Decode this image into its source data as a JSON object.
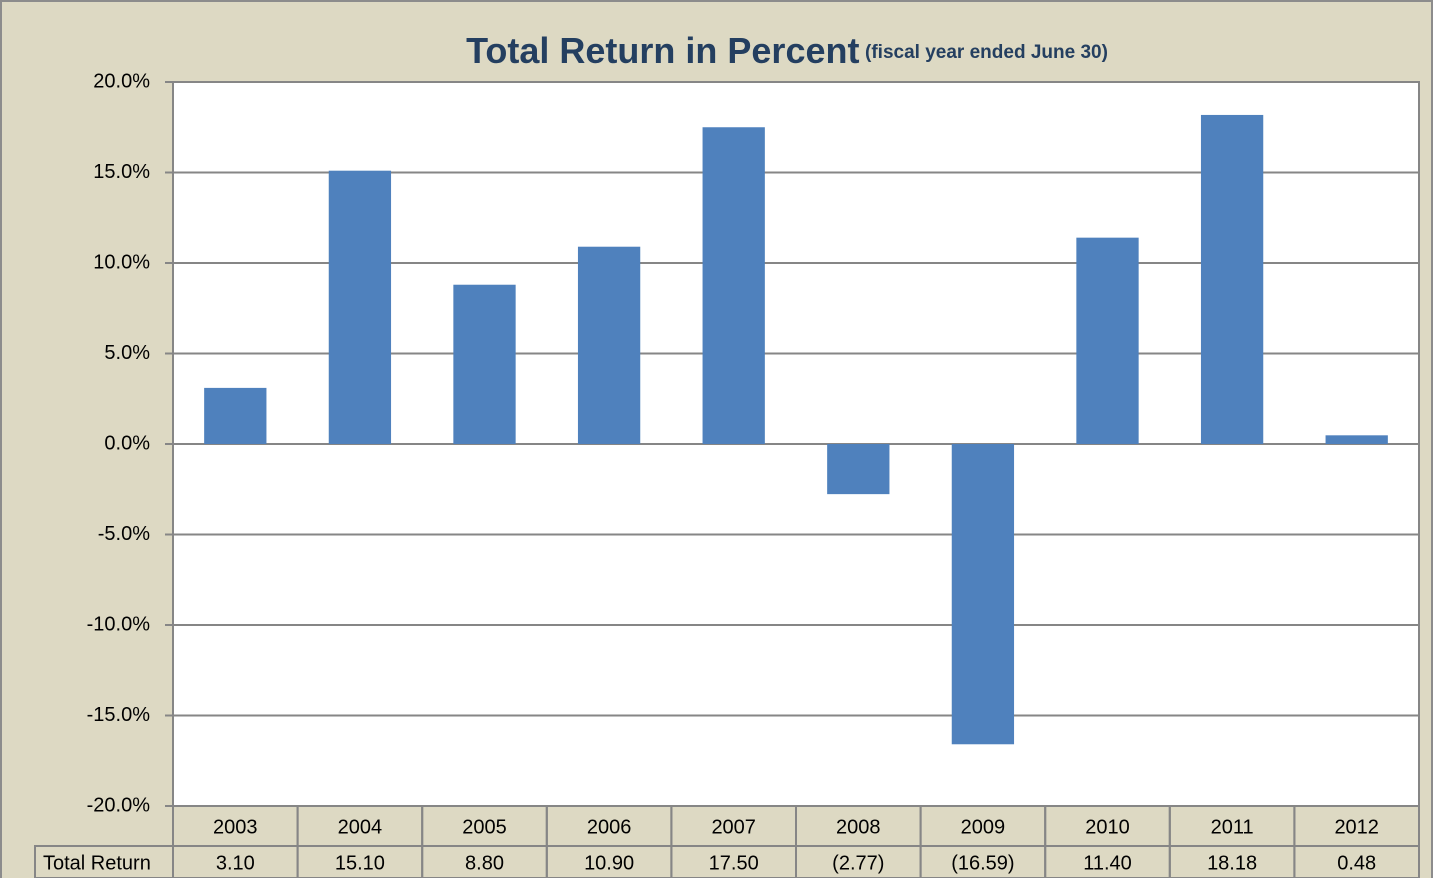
{
  "chart_data": {
    "type": "bar",
    "title": "Total Return in Percent",
    "subtitle": "(fiscal year ended June 30)",
    "categories": [
      "2003",
      "2004",
      "2005",
      "2006",
      "2007",
      "2008",
      "2009",
      "2010",
      "2011",
      "2012"
    ],
    "series": [
      {
        "name": "Total Return",
        "color": "#4f81bd",
        "values": [
          3.1,
          15.1,
          8.8,
          10.9,
          17.5,
          -2.77,
          -16.59,
          11.4,
          18.18,
          0.48
        ],
        "value_labels": [
          "3.10",
          "15.10",
          "8.80",
          "10.90",
          "17.50",
          "(2.77)",
          "(16.59)",
          "11.40",
          "18.18",
          "0.48"
        ]
      }
    ],
    "ylim": [
      -20,
      20
    ],
    "yticks": [
      {
        "value": -20,
        "label": "-20.0%"
      },
      {
        "value": -15,
        "label": "-15.0%"
      },
      {
        "value": -10,
        "label": "-10.0%"
      },
      {
        "value": -5,
        "label": "-5.0%"
      },
      {
        "value": 0,
        "label": "0.0%"
      },
      {
        "value": 5,
        "label": "5.0%"
      },
      {
        "value": 10,
        "label": "10.0%"
      },
      {
        "value": 15,
        "label": "15.0%"
      },
      {
        "value": 20,
        "label": "20.0%"
      }
    ],
    "grid": true
  }
}
